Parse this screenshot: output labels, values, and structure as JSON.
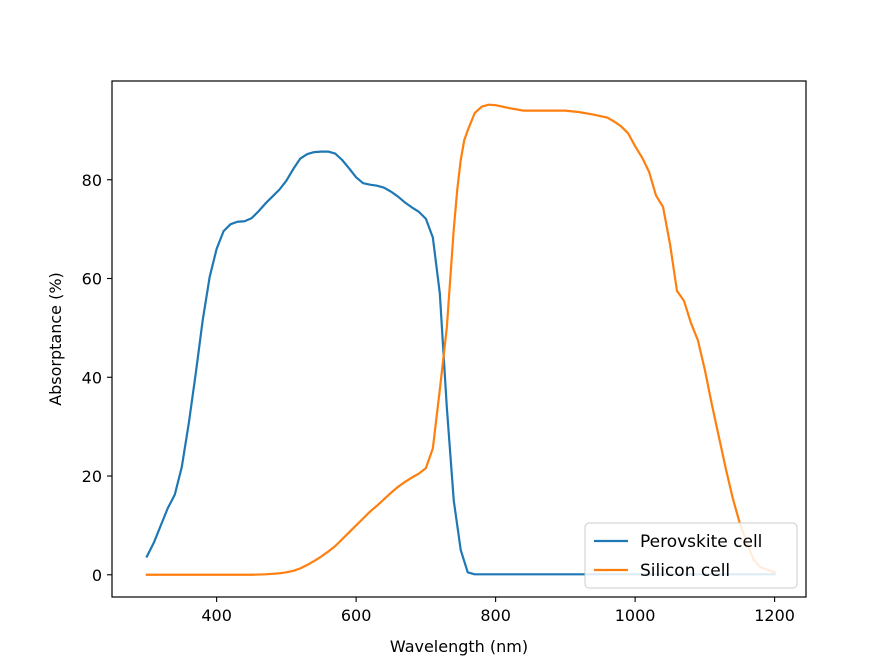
{
  "chart_data": {
    "type": "line",
    "title": "",
    "xlabel": "Wavelength (nm)",
    "ylabel": "Absorptance (%)",
    "xlim": [
      250,
      1245
    ],
    "ylim": [
      -4.5,
      100
    ],
    "xticks": [
      400,
      600,
      800,
      1000,
      1200
    ],
    "xtick_labels": [
      "400",
      "600",
      "800",
      "1000",
      "1200"
    ],
    "yticks": [
      0,
      20,
      40,
      60,
      80
    ],
    "ytick_labels": [
      "0",
      "20",
      "40",
      "60",
      "80"
    ],
    "grid": false,
    "legend_position": "lower-right",
    "series": [
      {
        "name": "Perovskite cell",
        "color": "#1f77b4",
        "x": [
          300,
          310,
          320,
          330,
          340,
          350,
          360,
          370,
          380,
          390,
          400,
          410,
          420,
          430,
          440,
          450,
          460,
          470,
          480,
          490,
          500,
          510,
          520,
          530,
          540,
          550,
          560,
          570,
          580,
          590,
          600,
          610,
          620,
          630,
          640,
          650,
          660,
          670,
          680,
          690,
          700,
          710,
          720,
          730,
          740,
          750,
          760,
          770,
          780,
          800,
          900,
          1000,
          1100,
          1200
        ],
        "y": [
          3.7,
          6.5,
          10,
          13.5,
          16.2,
          21.8,
          30.6,
          40.7,
          51.5,
          60.3,
          66,
          69.6,
          71,
          71.5,
          71.6,
          72.2,
          73.6,
          75.2,
          76.6,
          78,
          79.8,
          82.2,
          84.3,
          85.2,
          85.6,
          85.7,
          85.7,
          85.3,
          84,
          82.3,
          80.5,
          79.3,
          79,
          78.8,
          78.4,
          77.6,
          76.6,
          75.4,
          74.4,
          73.5,
          72.1,
          68.3,
          57,
          34,
          15,
          5,
          0.5,
          0.1,
          0.1,
          0.1,
          0.1,
          0.1,
          0.1,
          0.1
        ]
      },
      {
        "name": "Silicon cell",
        "color": "#ff7f0e",
        "x": [
          300,
          350,
          400,
          450,
          470,
          480,
          490,
          500,
          510,
          520,
          530,
          540,
          550,
          560,
          570,
          580,
          590,
          600,
          610,
          620,
          630,
          640,
          650,
          660,
          670,
          680,
          690,
          700,
          710,
          720,
          730,
          735,
          740,
          745,
          750,
          755,
          760,
          770,
          780,
          790,
          800,
          820,
          840,
          860,
          880,
          900,
          920,
          940,
          960,
          970,
          980,
          990,
          1000,
          1010,
          1020,
          1030,
          1040,
          1050,
          1060,
          1070,
          1080,
          1090,
          1100,
          1110,
          1120,
          1130,
          1140,
          1150,
          1160,
          1170,
          1180,
          1190,
          1200
        ],
        "y": [
          0,
          0,
          0,
          0,
          0.1,
          0.2,
          0.3,
          0.5,
          0.8,
          1.3,
          2,
          2.8,
          3.7,
          4.7,
          5.8,
          7.2,
          8.6,
          10,
          11.4,
          12.8,
          14,
          15.3,
          16.6,
          17.8,
          18.8,
          19.7,
          20.5,
          21.6,
          25.6,
          37.5,
          50,
          60,
          70,
          78,
          84,
          88,
          90,
          93.5,
          94.8,
          95.2,
          95.1,
          94.5,
          94,
          94,
          94,
          94,
          93.7,
          93.2,
          92.6,
          91.8,
          90.8,
          89.4,
          86.8,
          84.5,
          81.6,
          76.8,
          74.5,
          67,
          57.5,
          55.5,
          51,
          47.5,
          41.5,
          34.5,
          28,
          21.5,
          15.5,
          10.5,
          6.5,
          3,
          1.5,
          1,
          0.5
        ]
      }
    ]
  }
}
